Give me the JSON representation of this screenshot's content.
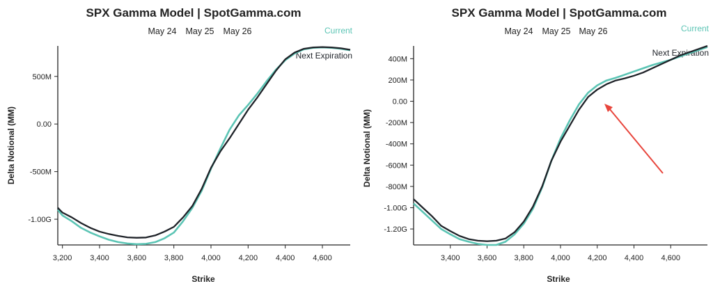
{
  "colors": {
    "current": "#5bc4b4",
    "next": "#1e2228",
    "annotation_arrow": "#e8453c"
  },
  "chart_data": [
    {
      "type": "line",
      "title": "SPX Gamma Model | SpotGamma.com",
      "legend": [
        "May 24",
        "May 25",
        "May 26"
      ],
      "legend_highlight": "May 25",
      "xlabel": "Strike",
      "ylabel": "Delta Notional (MM)",
      "xlim": [
        3175,
        4750
      ],
      "ylim": [
        -1270,
        820
      ],
      "x_ticks": [
        3200,
        3400,
        3600,
        3800,
        4000,
        4200,
        4400,
        4600
      ],
      "x_tick_labels": [
        "3,200",
        "3,400",
        "3,600",
        "3,800",
        "4,000",
        "4,200",
        "4,400",
        "4,600"
      ],
      "y_ticks": [
        -1000,
        -500,
        0,
        500
      ],
      "y_tick_labels": [
        "-1.00G",
        "-500M",
        "0.00",
        "500M"
      ],
      "series": [
        {
          "name": "Current",
          "color_key": "current",
          "x": [
            3175,
            3200,
            3250,
            3300,
            3350,
            3400,
            3450,
            3500,
            3550,
            3600,
            3650,
            3700,
            3750,
            3800,
            3850,
            3900,
            3950,
            4000,
            4050,
            4100,
            4150,
            4200,
            4250,
            4300,
            4350,
            4400,
            4450,
            4500,
            4550,
            4600,
            4650,
            4700,
            4750
          ],
          "y": [
            -900,
            -960,
            -1020,
            -1090,
            -1140,
            -1180,
            -1215,
            -1240,
            -1255,
            -1262,
            -1258,
            -1240,
            -1200,
            -1140,
            -1020,
            -880,
            -700,
            -470,
            -260,
            -60,
            90,
            200,
            320,
            450,
            570,
            670,
            740,
            785,
            800,
            805,
            800,
            790,
            775
          ]
        },
        {
          "name": "Next Expiration",
          "color_key": "next",
          "x": [
            3175,
            3200,
            3250,
            3300,
            3350,
            3400,
            3450,
            3500,
            3550,
            3600,
            3650,
            3700,
            3750,
            3800,
            3850,
            3900,
            3950,
            4000,
            4050,
            4100,
            4150,
            4200,
            4250,
            4300,
            4350,
            4400,
            4450,
            4500,
            4550,
            4600,
            4650,
            4700,
            4750
          ],
          "y": [
            -880,
            -930,
            -980,
            -1040,
            -1090,
            -1130,
            -1155,
            -1175,
            -1190,
            -1195,
            -1192,
            -1170,
            -1130,
            -1080,
            -980,
            -860,
            -680,
            -460,
            -290,
            -150,
            0,
            150,
            280,
            420,
            560,
            680,
            750,
            790,
            805,
            808,
            805,
            795,
            780
          ]
        }
      ]
    },
    {
      "type": "line",
      "title": "SPX Gamma Model | SpotGamma.com",
      "legend": [
        "May 24",
        "May 25",
        "May 26"
      ],
      "legend_highlight": "May 26",
      "xlabel": "Strike",
      "ylabel": "Delta Notional (MM)",
      "xlim": [
        3200,
        4800
      ],
      "ylim": [
        -1350,
        520
      ],
      "x_ticks": [
        3400,
        3600,
        3800,
        4000,
        4200,
        4400,
        4600
      ],
      "x_tick_labels": [
        "3,400",
        "3,600",
        "3,800",
        "4,000",
        "4,200",
        "4,400",
        "4,600"
      ],
      "y_ticks": [
        -1200,
        -1000,
        -800,
        -600,
        -400,
        -200,
        0,
        200,
        400
      ],
      "y_tick_labels": [
        "-1.20G",
        "-1.00G",
        "-800M",
        "-600M",
        "-400M",
        "-200M",
        "0.00",
        "200M",
        "400M"
      ],
      "series": [
        {
          "name": "Current",
          "color_key": "current",
          "x": [
            3200,
            3250,
            3300,
            3350,
            3400,
            3450,
            3500,
            3550,
            3600,
            3650,
            3700,
            3750,
            3800,
            3850,
            3900,
            3950,
            4000,
            4050,
            4100,
            4150,
            4200,
            4250,
            4300,
            4350,
            4400,
            4450,
            4500,
            4550,
            4600,
            4650,
            4700,
            4750,
            4800
          ],
          "y": [
            -960,
            -1040,
            -1120,
            -1200,
            -1250,
            -1295,
            -1320,
            -1340,
            -1350,
            -1350,
            -1320,
            -1250,
            -1150,
            -1010,
            -810,
            -560,
            -350,
            -180,
            -30,
            80,
            150,
            195,
            220,
            250,
            280,
            310,
            340,
            365,
            390,
            420,
            450,
            480,
            510
          ]
        },
        {
          "name": "Next Expiration",
          "color_key": "next",
          "x": [
            3200,
            3250,
            3300,
            3350,
            3400,
            3450,
            3500,
            3550,
            3600,
            3650,
            3700,
            3750,
            3800,
            3850,
            3900,
            3950,
            4000,
            4050,
            4100,
            4150,
            4200,
            4250,
            4300,
            4350,
            4400,
            4450,
            4500,
            4550,
            4600,
            4650,
            4700,
            4750,
            4800
          ],
          "y": [
            -920,
            -1000,
            -1080,
            -1170,
            -1220,
            -1265,
            -1295,
            -1310,
            -1315,
            -1310,
            -1290,
            -1230,
            -1130,
            -990,
            -800,
            -560,
            -380,
            -230,
            -80,
            40,
            110,
            160,
            195,
            215,
            240,
            270,
            310,
            350,
            390,
            430,
            460,
            490,
            520
          ]
        }
      ]
    }
  ]
}
